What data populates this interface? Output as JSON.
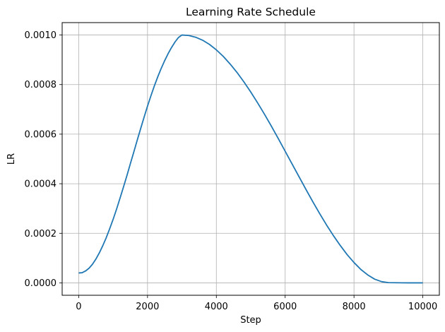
{
  "chart_data": {
    "type": "line",
    "title": "Learning Rate Schedule",
    "xlabel": "Step",
    "ylabel": "LR",
    "xlim": [
      -480,
      10480
    ],
    "ylim": [
      -5e-05,
      0.00105
    ],
    "grid": true,
    "xticks": [
      0,
      2000,
      4000,
      6000,
      8000,
      10000
    ],
    "xtick_labels": [
      "0",
      "2000",
      "4000",
      "6000",
      "8000",
      "10000"
    ],
    "yticks": [
      0,
      0.0002,
      0.0004,
      0.0006,
      0.0008,
      0.001
    ],
    "ytick_labels": [
      "0.0000",
      "0.0002",
      "0.0004",
      "0.0006",
      "0.0008",
      "0.0010"
    ],
    "series": [
      {
        "color": "#1f77b4",
        "x": [
          0,
          100,
          200,
          300,
          400,
          500,
          600,
          700,
          800,
          900,
          1000,
          1100,
          1200,
          1300,
          1400,
          1500,
          1600,
          1700,
          1800,
          1900,
          2000,
          2100,
          2200,
          2300,
          2400,
          2500,
          2600,
          2700,
          2800,
          2900,
          3000,
          3200,
          3400,
          3600,
          3800,
          4000,
          4200,
          4400,
          4600,
          4800,
          5000,
          5200,
          5400,
          5600,
          5800,
          6000,
          6200,
          6400,
          6600,
          6800,
          7000,
          7200,
          7400,
          7600,
          7800,
          8000,
          8200,
          8400,
          8600,
          8800,
          9000,
          9200,
          9400,
          9600,
          9800,
          10000
        ],
        "y": [
          4e-05,
          4.1e-05,
          4.8e-05,
          5.9e-05,
          7.5e-05,
          9.6e-05,
          0.000121,
          0.00015,
          0.000182,
          0.000218,
          0.000256,
          0.000297,
          0.000341,
          0.000386,
          0.000432,
          0.00048,
          0.000527,
          0.000575,
          0.000622,
          0.000668,
          0.000713,
          0.000755,
          0.000795,
          0.000832,
          0.000866,
          0.000897,
          0.000925,
          0.00095,
          0.000972,
          0.00099,
          0.001,
          0.000998,
          0.000991,
          0.000979,
          0.000962,
          0.00094,
          0.000914,
          0.000883,
          0.000849,
          0.000811,
          0.00077,
          0.000726,
          0.00068,
          0.000632,
          0.000582,
          0.000531,
          0.00048,
          0.000429,
          0.000378,
          0.000328,
          0.00028,
          0.000234,
          0.000191,
          0.000151,
          0.000114,
          8.2e-05,
          5.4e-05,
          3.2e-05,
          1.5e-05,
          5e-06,
          1e-06,
          5e-07,
          2e-07,
          1e-07,
          5e-08,
          0.0
        ]
      }
    ]
  }
}
